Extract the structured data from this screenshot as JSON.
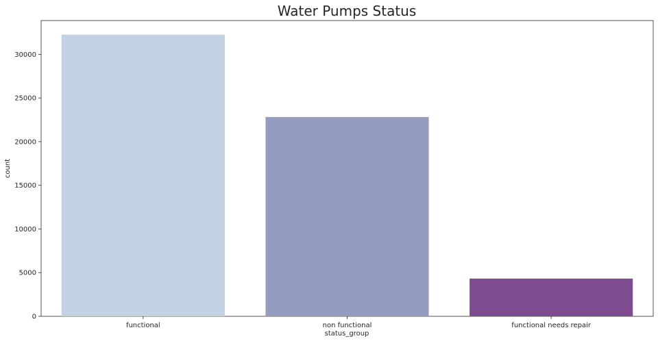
{
  "chart_data": {
    "type": "bar",
    "title": "Water Pumps Status",
    "xlabel": "status_group",
    "ylabel": "count",
    "categories": [
      "functional",
      "non functional",
      "functional needs repair"
    ],
    "values": [
      32259,
      22824,
      4317
    ],
    "colors": [
      "#c3d2e2",
      "#959cc0",
      "#7f4b90"
    ],
    "ylim": [
      0,
      33871
    ],
    "yticks": [
      0,
      5000,
      10000,
      15000,
      20000,
      25000,
      30000
    ],
    "grid": false,
    "legend": "none"
  }
}
